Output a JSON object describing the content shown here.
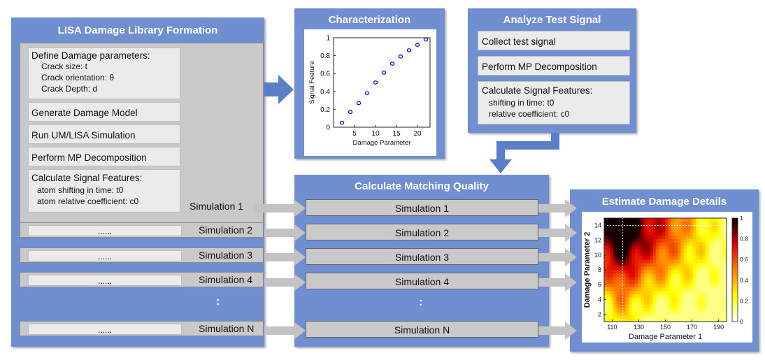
{
  "library": {
    "title": "LISA Damage Library Formation",
    "define_params": "Define Damage parameters:",
    "param_lines": [
      "Crack size: t",
      "Crack orientation: θ",
      "Crack Depth: d"
    ],
    "steps": [
      "Generate Damage Model",
      "Run UM/LISA Simulation",
      "Perform MP Decomposition"
    ],
    "calc_features": "Calculate Signal Features:",
    "feature_lines": [
      "atom shifting in time: t0",
      "atom relative coefficient: c0"
    ],
    "ellipsis": "......",
    "vertical_dots": ":"
  },
  "simulations": [
    "Simulation 1",
    "Simulation 2",
    "Simulation 3",
    "Simulation 4",
    "Simulation N"
  ],
  "characterization": {
    "title": "Characterization"
  },
  "analyze": {
    "title": "Analyze Test Signal",
    "steps": [
      "Collect test signal",
      "Perform MP Decomposition"
    ],
    "calc_features": "Calculate Signal Features:",
    "feature_lines": [
      "shifting in time: t0",
      "relative coefficient: c0"
    ]
  },
  "matching": {
    "title": "Calculate Matching Quality",
    "vertical_dots": ":"
  },
  "estimate": {
    "title": "Estimate Damage Details"
  },
  "chart_data": [
    {
      "type": "scatter",
      "title": "",
      "xlabel": "Damage Parameter",
      "ylabel": "Signal Feature",
      "xlim": [
        0,
        23
      ],
      "ylim": [
        0,
        1
      ],
      "x_ticks": [
        5,
        10,
        15,
        20
      ],
      "y_ticks": [
        0,
        0.2,
        0.4,
        0.6,
        0.8,
        1
      ],
      "marker_color": "#1010d0",
      "x": [
        2,
        4,
        6,
        8,
        10,
        12,
        14,
        16,
        18,
        20,
        22
      ],
      "y": [
        0.05,
        0.17,
        0.27,
        0.38,
        0.5,
        0.61,
        0.71,
        0.79,
        0.86,
        0.92,
        0.98
      ]
    },
    {
      "type": "heatmap",
      "xlabel": "Damage Parameter 1",
      "ylabel": "Damage Parameter 2",
      "x_ticks": [
        110,
        130,
        150,
        170,
        190
      ],
      "y_ticks": [
        2,
        4,
        6,
        8,
        10,
        12,
        14
      ],
      "xlim": [
        104,
        196
      ],
      "ylim": [
        1,
        15
      ],
      "colorbar_ticks": [
        0,
        0.2,
        0.4,
        0.6,
        0.8,
        1
      ],
      "colormap": [
        "#ffffff",
        "#ffff00",
        "#ff8000",
        "#dd0000",
        "#000000"
      ],
      "peak": {
        "x": 118,
        "y": 14
      }
    }
  ]
}
